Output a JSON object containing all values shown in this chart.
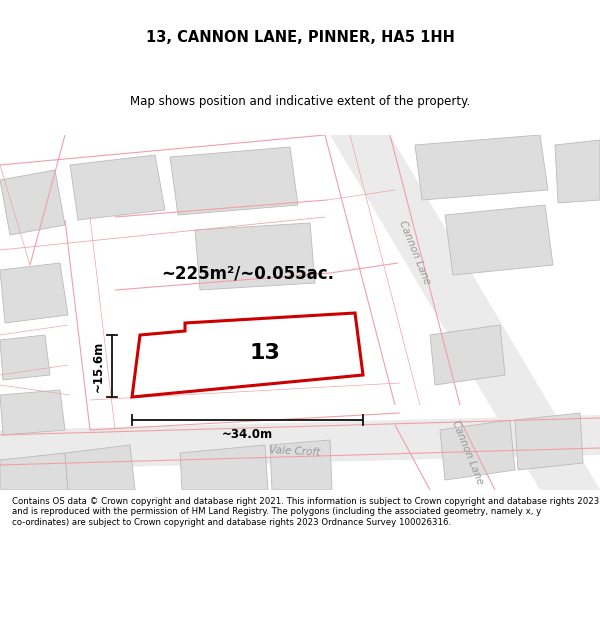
{
  "title": "13, CANNON LANE, PINNER, HA5 1HH",
  "subtitle": "Map shows position and indicative extent of the property.",
  "footer": "Contains OS data © Crown copyright and database right 2021. This information is subject to Crown copyright and database rights 2023 and is reproduced with the permission of HM Land Registry. The polygons (including the associated geometry, namely x, y co-ordinates) are subject to Crown copyright and database rights 2023 Ordnance Survey 100026316.",
  "area_label": "~225m²/~0.055ac.",
  "width_label": "~34.0m",
  "height_label": "~15.6m",
  "number_label": "13",
  "map_bg": "#f7f7f7",
  "building_fill": "#dddddd",
  "building_edge": "#bbbbbb",
  "road_line": "#f0a0a8",
  "plot_line": "#cc0000",
  "plot_fill": "#ffffff",
  "plot_lw": 2.2,
  "dim_line_color": "#111111",
  "street_label_color": "#999999",
  "title_fontsize": 10.5,
  "subtitle_fontsize": 8.5,
  "footer_fontsize": 6.2,
  "number_fontsize": 16,
  "area_fontsize": 12,
  "dim_fontsize": 8.5,
  "street_fontsize": 7.5,
  "road_lw": 0.8,
  "building_lw": 0.6
}
